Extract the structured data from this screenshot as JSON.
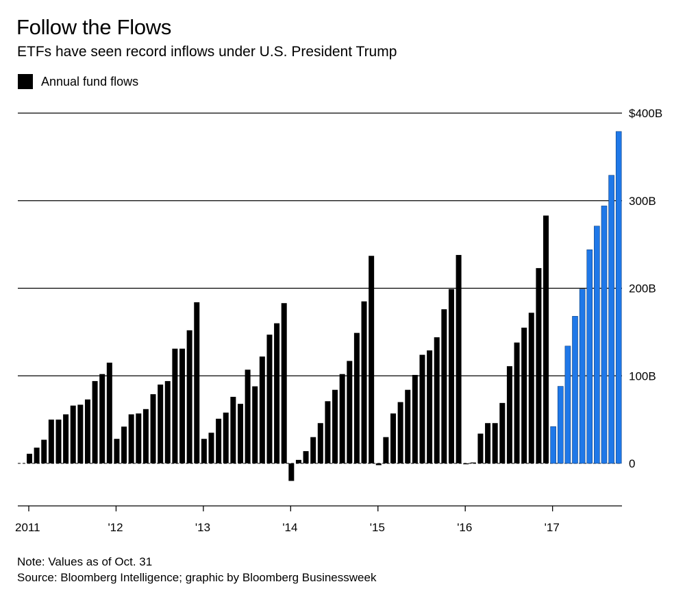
{
  "title": "Follow the Flows",
  "subtitle": "ETFs have seen record inflows under U.S. President Trump",
  "legend_label": "Annual fund flows",
  "note": "Note: Values as of Oct. 31",
  "source": "Source: Bloomberg Intelligence; graphic by Bloomberg Businessweek",
  "colors": {
    "bar": "#000000",
    "highlight": "#1f78e8",
    "grid": "#000000"
  },
  "chart_data": {
    "type": "bar",
    "series": [
      {
        "name": "Annual fund flows",
        "unit": "B",
        "values": [
          11,
          18,
          27,
          50,
          50,
          56,
          66,
          67,
          73,
          94,
          102,
          115,
          28,
          42,
          56,
          57,
          62,
          79,
          90,
          94,
          131,
          131,
          152,
          184,
          28,
          35,
          51,
          58,
          76,
          68,
          107,
          88,
          122,
          147,
          160,
          183,
          -20,
          4,
          14,
          30,
          46,
          71,
          84,
          102,
          117,
          149,
          185,
          237,
          -2,
          30,
          57,
          70,
          84,
          101,
          124,
          129,
          144,
          176,
          199,
          238,
          -1,
          1,
          34,
          46,
          46,
          69,
          111,
          138,
          155,
          172,
          223,
          283,
          42,
          88,
          134,
          168,
          199,
          244,
          271,
          294,
          329,
          379
        ]
      }
    ],
    "highlight_start_index": 72,
    "x_tick_labels": [
      "2011",
      "'12",
      "'13",
      "'14",
      "'15",
      "'16",
      "'17"
    ],
    "y_tick_labels": [
      "$400B",
      "300B",
      "200B",
      "100B",
      "0"
    ],
    "y_ticks": [
      400,
      300,
      200,
      100,
      0
    ],
    "ylim": [
      -48,
      400
    ]
  }
}
